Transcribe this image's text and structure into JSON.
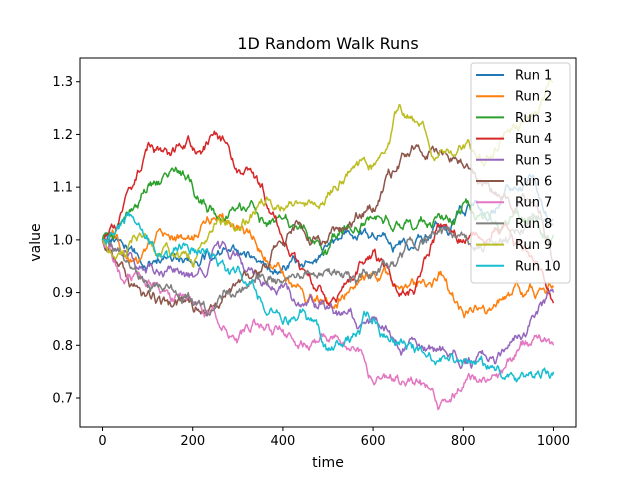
{
  "chart_data": {
    "type": "line",
    "title": "1D Random Walk Runs",
    "xlabel": "time",
    "ylabel": "value",
    "xlim": [
      -50,
      1050
    ],
    "ylim": [
      0.645,
      1.345
    ],
    "xticks": [
      0,
      200,
      400,
      600,
      800,
      1000
    ],
    "yticks": [
      0.7,
      0.8,
      0.9,
      1.0,
      1.1,
      1.2,
      1.3
    ],
    "ytick_labels": [
      "0.7",
      "0.8",
      "0.9",
      "1.0",
      "1.1",
      "1.2",
      "1.3"
    ],
    "grid": false,
    "legend_position": "upper right",
    "x_knots": [
      0,
      50,
      100,
      150,
      200,
      250,
      300,
      350,
      400,
      450,
      500,
      550,
      600,
      650,
      700,
      750,
      800,
      850,
      900,
      950,
      1000
    ],
    "series": [
      {
        "name": "Run 1",
        "color": "#1f77b4",
        "knots": [
          1.0,
          0.99,
          0.95,
          0.97,
          0.95,
          0.97,
          0.98,
          0.96,
          0.95,
          0.96,
          0.99,
          1.01,
          1.01,
          0.99,
          1.01,
          1.02,
          1.05,
          1.04,
          1.1,
          1.12,
          1.04
        ]
      },
      {
        "name": "Run 2",
        "color": "#ff7f0e",
        "knots": [
          1.0,
          0.97,
          0.99,
          1.0,
          1.0,
          1.04,
          1.02,
          0.98,
          0.94,
          0.88,
          0.88,
          0.91,
          0.94,
          0.91,
          0.92,
          0.94,
          0.86,
          0.86,
          0.9,
          0.91,
          0.91
        ]
      },
      {
        "name": "Run 3",
        "color": "#2ca02c",
        "knots": [
          1.0,
          1.04,
          1.1,
          1.13,
          1.1,
          1.05,
          1.06,
          1.04,
          1.04,
          1.02,
          0.98,
          1.02,
          1.04,
          1.03,
          1.03,
          1.04,
          1.07,
          1.05,
          1.03,
          1.04,
          1.01
        ]
      },
      {
        "name": "Run 4",
        "color": "#d62728",
        "knots": [
          1.0,
          1.08,
          1.18,
          1.16,
          1.17,
          1.2,
          1.13,
          1.1,
          1.0,
          0.94,
          0.88,
          0.93,
          0.98,
          0.91,
          0.93,
          1.03,
          1.0,
          0.99,
          1.02,
          0.97,
          0.88
        ]
      },
      {
        "name": "Run 5",
        "color": "#9467bd",
        "knots": [
          1.0,
          0.98,
          0.95,
          0.95,
          0.93,
          0.99,
          0.97,
          0.92,
          0.91,
          0.88,
          0.87,
          0.87,
          0.85,
          0.81,
          0.8,
          0.79,
          0.77,
          0.78,
          0.8,
          0.85,
          0.9
        ]
      },
      {
        "name": "Run 6",
        "color": "#8c564b",
        "knots": [
          1.0,
          0.94,
          0.9,
          0.88,
          0.87,
          0.88,
          0.92,
          0.94,
          0.99,
          1.01,
          1.0,
          1.03,
          1.06,
          1.13,
          1.18,
          1.17,
          1.14,
          1.11,
          1.08,
          1.07,
          0.96
        ]
      },
      {
        "name": "Run 7",
        "color": "#e377c2",
        "knots": [
          1.0,
          0.92,
          0.92,
          0.89,
          0.88,
          0.86,
          0.81,
          0.84,
          0.83,
          0.8,
          0.81,
          0.79,
          0.73,
          0.74,
          0.73,
          0.69,
          0.72,
          0.73,
          0.77,
          0.8,
          0.8
        ]
      },
      {
        "name": "Run 8",
        "color": "#7f7f7f",
        "knots": [
          1.0,
          0.96,
          0.91,
          0.91,
          0.88,
          0.87,
          0.9,
          0.93,
          0.92,
          0.94,
          0.94,
          0.92,
          0.94,
          0.95,
          0.98,
          1.02,
          1.01,
          0.99,
          1.0,
          1.04,
          1.03
        ]
      },
      {
        "name": "Run 9",
        "color": "#bcbd22",
        "knots": [
          1.0,
          0.97,
          1.0,
          0.97,
          0.95,
          1.03,
          1.02,
          1.07,
          1.06,
          1.07,
          1.09,
          1.13,
          1.14,
          1.24,
          1.22,
          1.17,
          1.18,
          1.15,
          1.21,
          1.24,
          1.3
        ]
      },
      {
        "name": "Run 10",
        "color": "#17becf",
        "knots": [
          1.0,
          1.04,
          1.0,
          0.97,
          0.98,
          0.97,
          0.95,
          0.89,
          0.84,
          0.86,
          0.79,
          0.81,
          0.85,
          0.8,
          0.79,
          0.77,
          0.77,
          0.76,
          0.74,
          0.75,
          0.75
        ]
      }
    ]
  }
}
